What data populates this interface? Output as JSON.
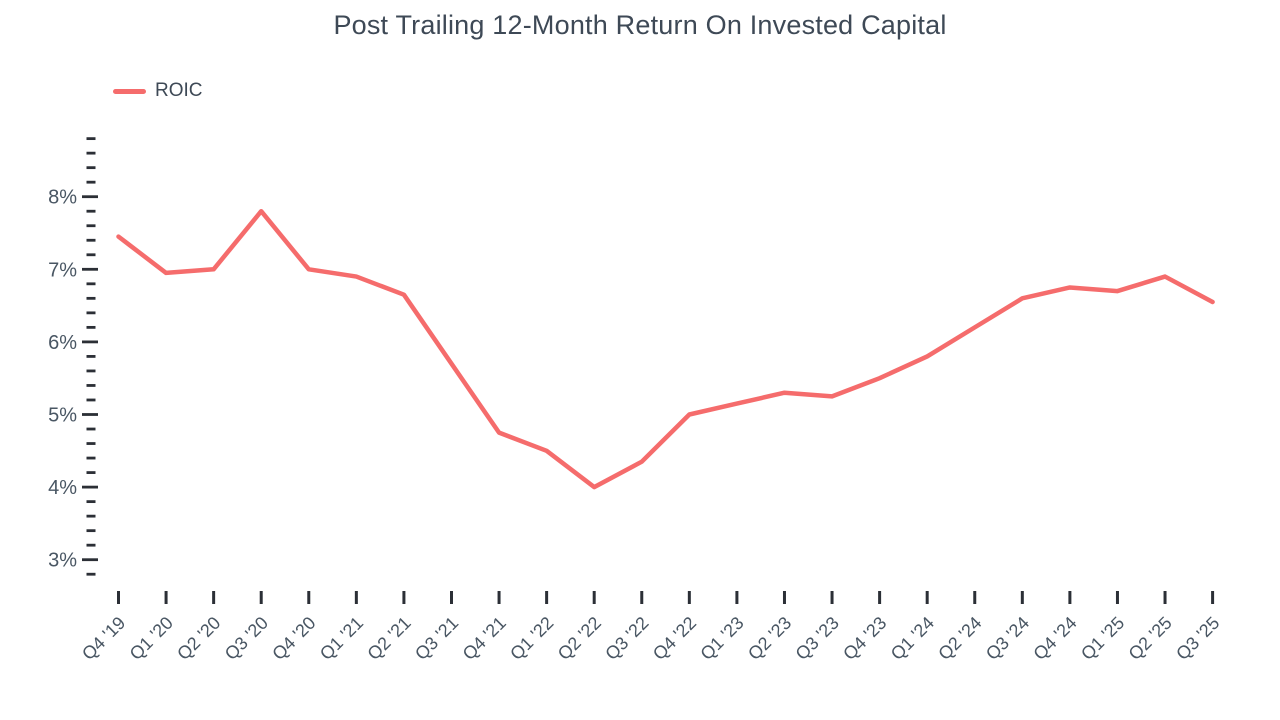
{
  "chart": {
    "title": "Post Trailing 12-Month Return On Invested Capital",
    "legend_items": [
      {
        "label": "ROIC",
        "color": "#f56c6c"
      }
    ]
  },
  "chart_data": {
    "type": "line",
    "title": "Post Trailing 12-Month Return On Invested Capital",
    "categories": [
      "Q4 '19",
      "Q1 '20",
      "Q2 '20",
      "Q3 '20",
      "Q4 '20",
      "Q1 '21",
      "Q2 '21",
      "Q3 '21",
      "Q4 '21",
      "Q1 '22",
      "Q2 '22",
      "Q3 '22",
      "Q4 '22",
      "Q1 '23",
      "Q2 '23",
      "Q3 '23",
      "Q4 '23",
      "Q1 '24",
      "Q2 '24",
      "Q3 '24",
      "Q4 '24",
      "Q1 '25",
      "Q2 '25",
      "Q3 '25"
    ],
    "series": [
      {
        "name": "ROIC",
        "color": "#f56c6c",
        "values": [
          7.45,
          6.95,
          7.0,
          7.8,
          7.0,
          6.9,
          6.65,
          5.7,
          4.75,
          4.5,
          4.0,
          4.35,
          5.0,
          5.15,
          5.3,
          5.25,
          5.5,
          5.8,
          6.2,
          6.6,
          6.75,
          6.7,
          6.9,
          6.55
        ]
      }
    ],
    "xlabel": "",
    "ylabel": "",
    "y_axis": {
      "unit": "%",
      "min": 2.8,
      "max": 8.8,
      "major_tick_step": 1,
      "minor_tick_step": 0.2,
      "major_tick_labels": [
        "3%",
        "4%",
        "5%",
        "6%",
        "7%",
        "8%"
      ]
    },
    "legend_position": "top-left",
    "grid": false
  },
  "colors": {
    "line": "#f56c6c",
    "title_text": "#3e4956",
    "axis_text": "#49566388",
    "axis_label": "#495663",
    "tick": "#2b2f36"
  }
}
